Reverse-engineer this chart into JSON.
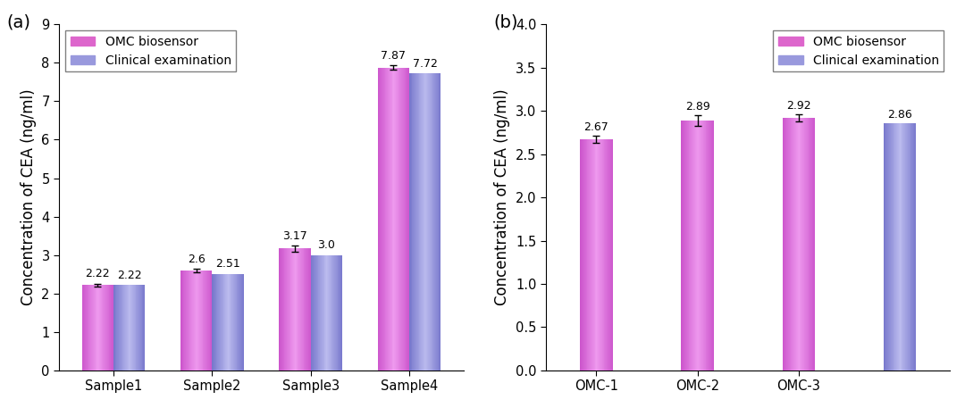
{
  "chart_a": {
    "categories": [
      "Sample1",
      "Sample2",
      "Sample3",
      "Sample4"
    ],
    "omc_values": [
      2.22,
      2.6,
      3.17,
      7.87
    ],
    "clinical_values": [
      2.22,
      2.51,
      3.0,
      7.72
    ],
    "omc_errors": [
      0.04,
      0.04,
      0.08,
      0.06
    ],
    "ylim": [
      0,
      9
    ],
    "yticks": [
      0,
      1,
      2,
      3,
      4,
      5,
      6,
      7,
      8,
      9
    ],
    "ylabel": "Concentration of CEA (ng/ml)",
    "label": "(a)"
  },
  "chart_b": {
    "categories": [
      "OMC-1",
      "OMC-2",
      "OMC-3"
    ],
    "omc_values": [
      2.67,
      2.89,
      2.92
    ],
    "clinical_value": 2.86,
    "omc_errors": [
      0.04,
      0.065,
      0.04
    ],
    "ylim": [
      0,
      4.0
    ],
    "yticks": [
      0.0,
      0.5,
      1.0,
      1.5,
      2.0,
      2.5,
      3.0,
      3.5,
      4.0
    ],
    "ylabel": "Concentration of CEA (ng/ml)",
    "label": "(b)"
  },
  "omc_color_main": "#CC55CC",
  "omc_color_light": "#EE99EE",
  "clinical_color_main": "#7777CC",
  "clinical_color_light": "#BBBBEE",
  "bar_width": 0.32,
  "legend_labels": [
    "OMC biosensor",
    "Clinical examination"
  ],
  "value_fontsize": 9,
  "label_fontsize": 12,
  "tick_fontsize": 10.5,
  "legend_fontsize": 10
}
